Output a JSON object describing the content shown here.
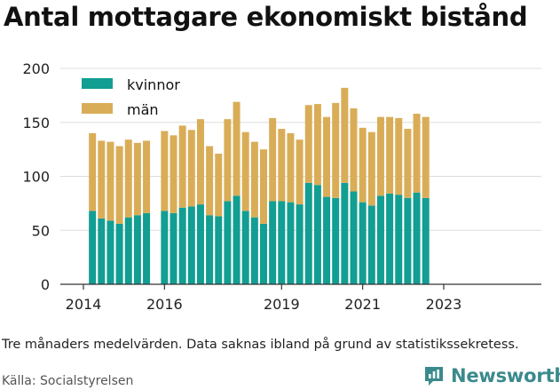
{
  "title": "Antal mottagare ekonomiskt bistånd",
  "caption": "Tre månaders medelvärden. Data saknas ibland på grund av statistikssekretess.",
  "source": "Källa: Socialstyrelsen",
  "brand": {
    "name": "Newsworthy",
    "icon": "bar-chart-logo-icon"
  },
  "colors": {
    "kvinnor": "#129e92",
    "man": "#d9ad57",
    "grid": "#dddddd",
    "axis": "#333333"
  },
  "chart_data": {
    "type": "bar",
    "stacked": true,
    "ylim": [
      0,
      200
    ],
    "yticks": [
      0,
      50,
      100,
      150,
      200
    ],
    "xticks": [
      {
        "label": "2014",
        "pos": 0
      },
      {
        "label": "2016",
        "pos": 9
      },
      {
        "label": "2019",
        "pos": 22
      },
      {
        "label": "2021",
        "pos": 31
      },
      {
        "label": "2023",
        "pos": 40
      }
    ],
    "legend": {
      "placement": "top-left"
    },
    "series": [
      {
        "name": "kvinnor",
        "color": "#129e92",
        "values": [
          null,
          68,
          61,
          59,
          56,
          62,
          64,
          66,
          null,
          68,
          66,
          71,
          72,
          74,
          64,
          63,
          77,
          82,
          68,
          62,
          56,
          77,
          77,
          76,
          74,
          94,
          92,
          81,
          80,
          94,
          86,
          76,
          73,
          82,
          84,
          83,
          80,
          85,
          80
        ]
      },
      {
        "name": "män",
        "color": "#d9ad57",
        "values": [
          null,
          72,
          72,
          73,
          72,
          72,
          67,
          67,
          null,
          74,
          72,
          76,
          71,
          79,
          64,
          58,
          76,
          87,
          73,
          70,
          69,
          77,
          67,
          64,
          60,
          72,
          75,
          74,
          88,
          88,
          77,
          69,
          68,
          73,
          71,
          71,
          64,
          73,
          75
        ]
      }
    ]
  }
}
